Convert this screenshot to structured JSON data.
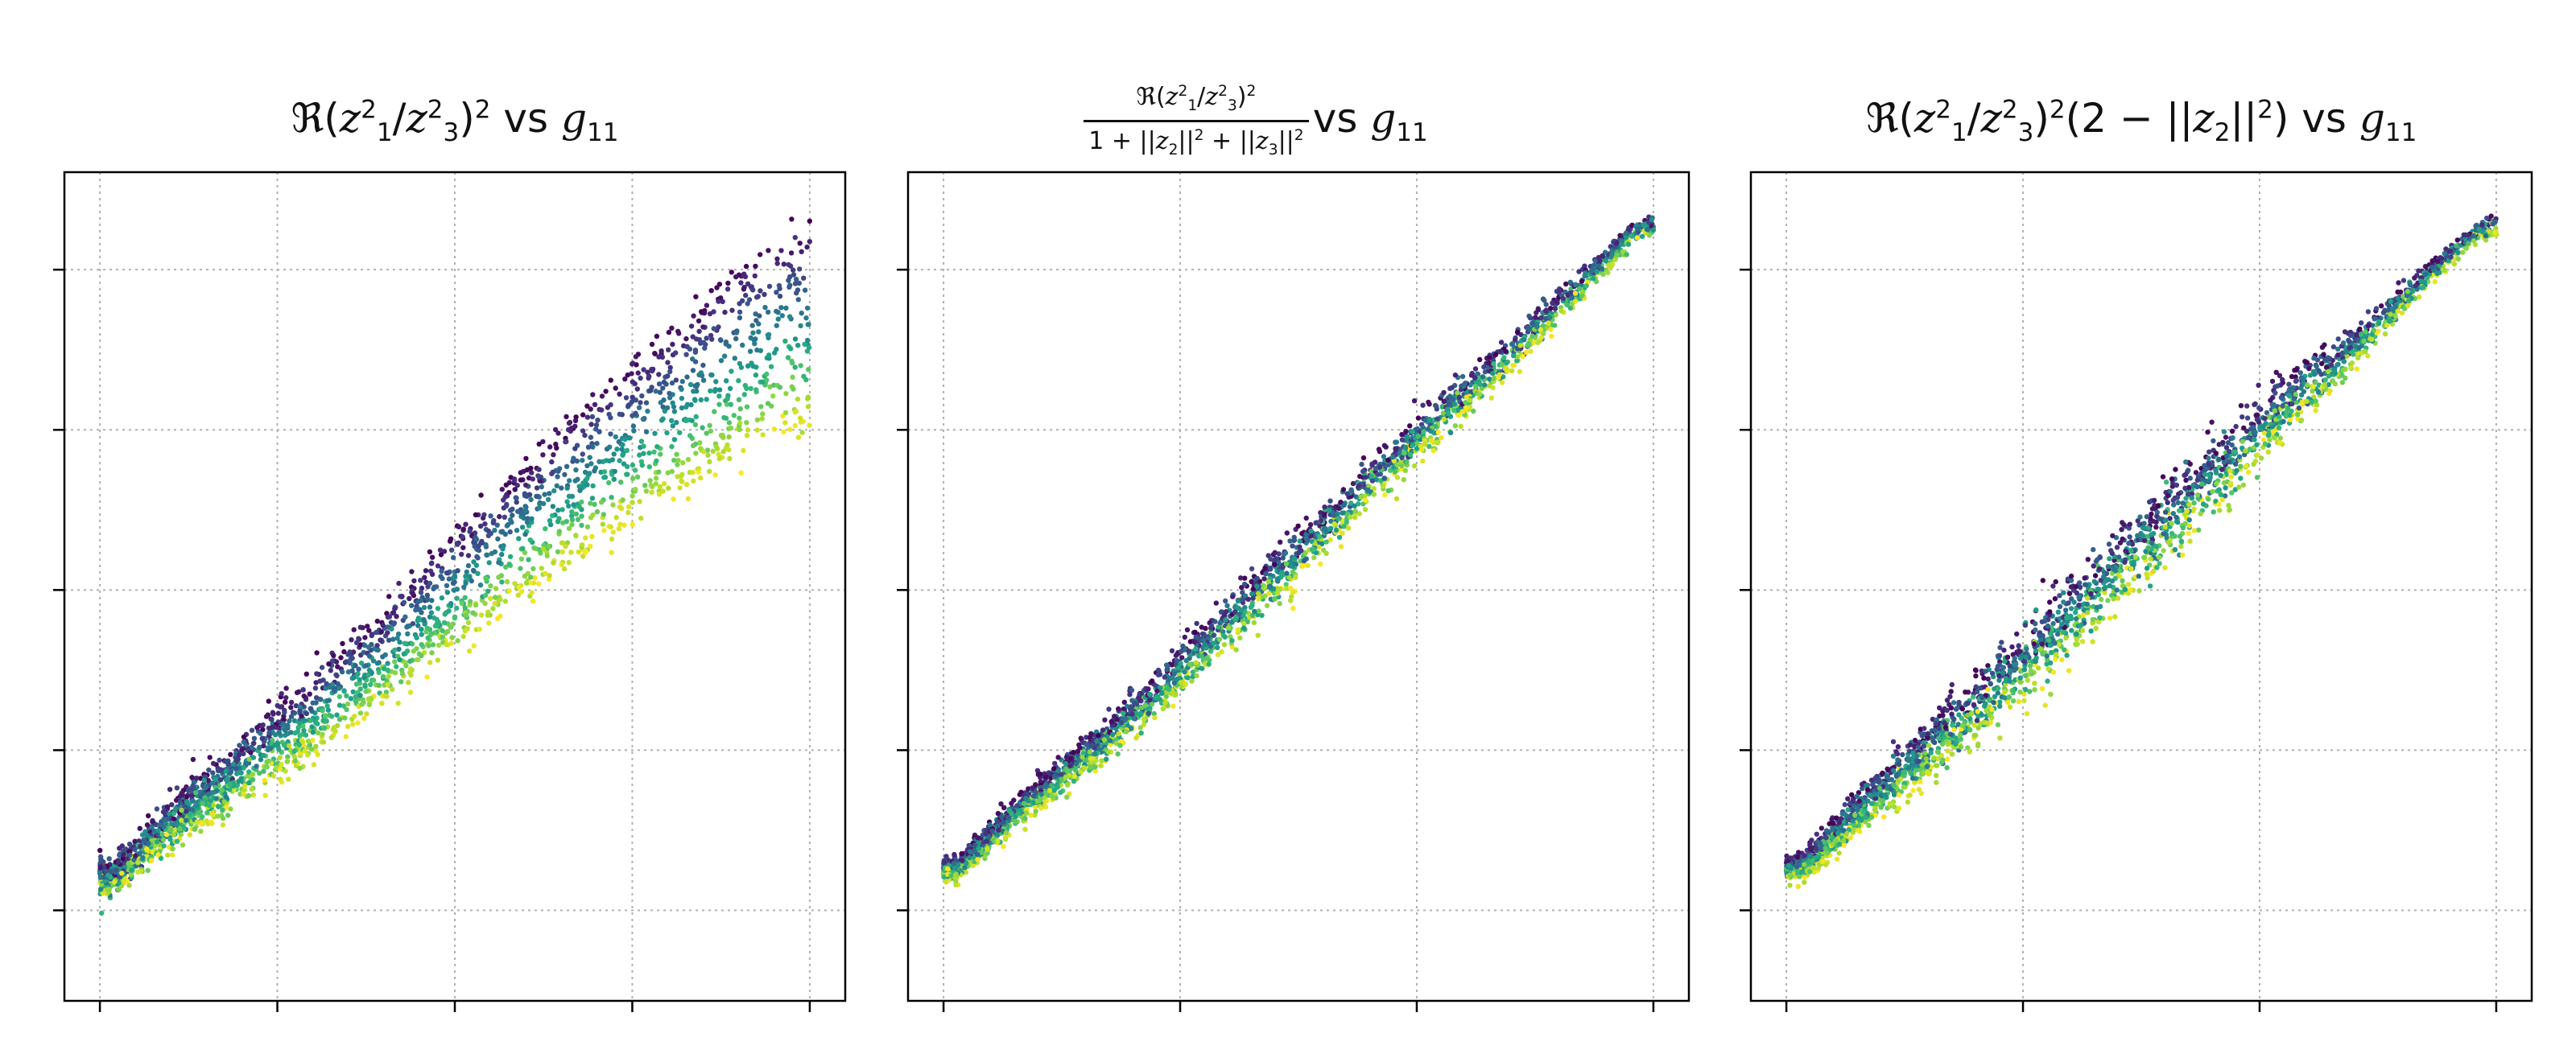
{
  "chart_data": [
    {
      "type": "scatter",
      "title": "ℜ(z₁²/z₃²)² vs g₁₁",
      "title_parts": {
        "prefix": "ℜ(",
        "suffix": ")",
        "vs": "vs"
      },
      "x_ticks": 5,
      "y_ticks": 5,
      "tick_labels_shown": false,
      "grid": true,
      "colormap": "viridis",
      "points": [
        [
          0.02,
          0.06
        ],
        [
          0.1,
          0.15
        ],
        [
          0.2,
          0.24
        ],
        [
          0.3,
          0.33
        ],
        [
          0.4,
          0.43
        ],
        [
          0.5,
          0.54
        ],
        [
          0.6,
          0.64
        ],
        [
          0.7,
          0.74
        ],
        [
          0.8,
          0.83
        ],
        [
          0.9,
          0.92
        ],
        [
          0.97,
          0.98
        ]
      ],
      "spread_pattern": "fan",
      "spread_min": 0.02,
      "spread_max": 0.3
    },
    {
      "type": "scatter",
      "title": "ℜ(z₁²/z₃²)² / (1+||z₂||²+||z₃||²) vs g₁₁",
      "title_parts": {
        "numerator_prefix": "ℜ(",
        "numerator_suffix": ")",
        "den_prefix": "1 + ||",
        "den_mid": "||",
        "den_plus": " + ||",
        "den_suffix": "||",
        "vs": "vs"
      },
      "x_ticks": 4,
      "y_ticks": 5,
      "tick_labels_shown": false,
      "grid": true,
      "colormap": "viridis",
      "points": [
        [
          0.02,
          0.06
        ],
        [
          0.1,
          0.14
        ],
        [
          0.2,
          0.22
        ],
        [
          0.3,
          0.31
        ],
        [
          0.4,
          0.41
        ],
        [
          0.5,
          0.51
        ],
        [
          0.6,
          0.61
        ],
        [
          0.7,
          0.71
        ],
        [
          0.8,
          0.8
        ],
        [
          0.9,
          0.9
        ],
        [
          0.98,
          0.98
        ]
      ],
      "spread_pattern": "narrow",
      "spread_min": 0.02,
      "spread_max": 0.05
    },
    {
      "type": "scatter",
      "title": "ℜ(z₁²/z₃²)²(2 − ||z₂||²) vs g₁₁",
      "title_parts": {
        "prefix": "ℜ(",
        "mid": ")",
        "paren_open": "(2 − ||",
        "paren_mid": "||",
        "paren_close": ")",
        "vs": "vs"
      },
      "x_ticks": 4,
      "y_ticks": 5,
      "tick_labels_shown": false,
      "grid": true,
      "colormap": "viridis",
      "points": [
        [
          0.02,
          0.06
        ],
        [
          0.1,
          0.14
        ],
        [
          0.2,
          0.23
        ],
        [
          0.3,
          0.32
        ],
        [
          0.4,
          0.42
        ],
        [
          0.5,
          0.52
        ],
        [
          0.6,
          0.62
        ],
        [
          0.7,
          0.72
        ],
        [
          0.8,
          0.81
        ],
        [
          0.9,
          0.91
        ],
        [
          0.98,
          0.98
        ]
      ],
      "spread_pattern": "bulge",
      "spread_min": 0.02,
      "spread_max": 0.08
    }
  ],
  "colors": {
    "viridis": [
      "#440154",
      "#482878",
      "#3e4989",
      "#31688e",
      "#26828e",
      "#1f9e89",
      "#35b779",
      "#6ece58",
      "#b5de2b",
      "#fde725"
    ],
    "grid": "#b0b0b0",
    "axes": "#000000",
    "background": "#ffffff"
  }
}
